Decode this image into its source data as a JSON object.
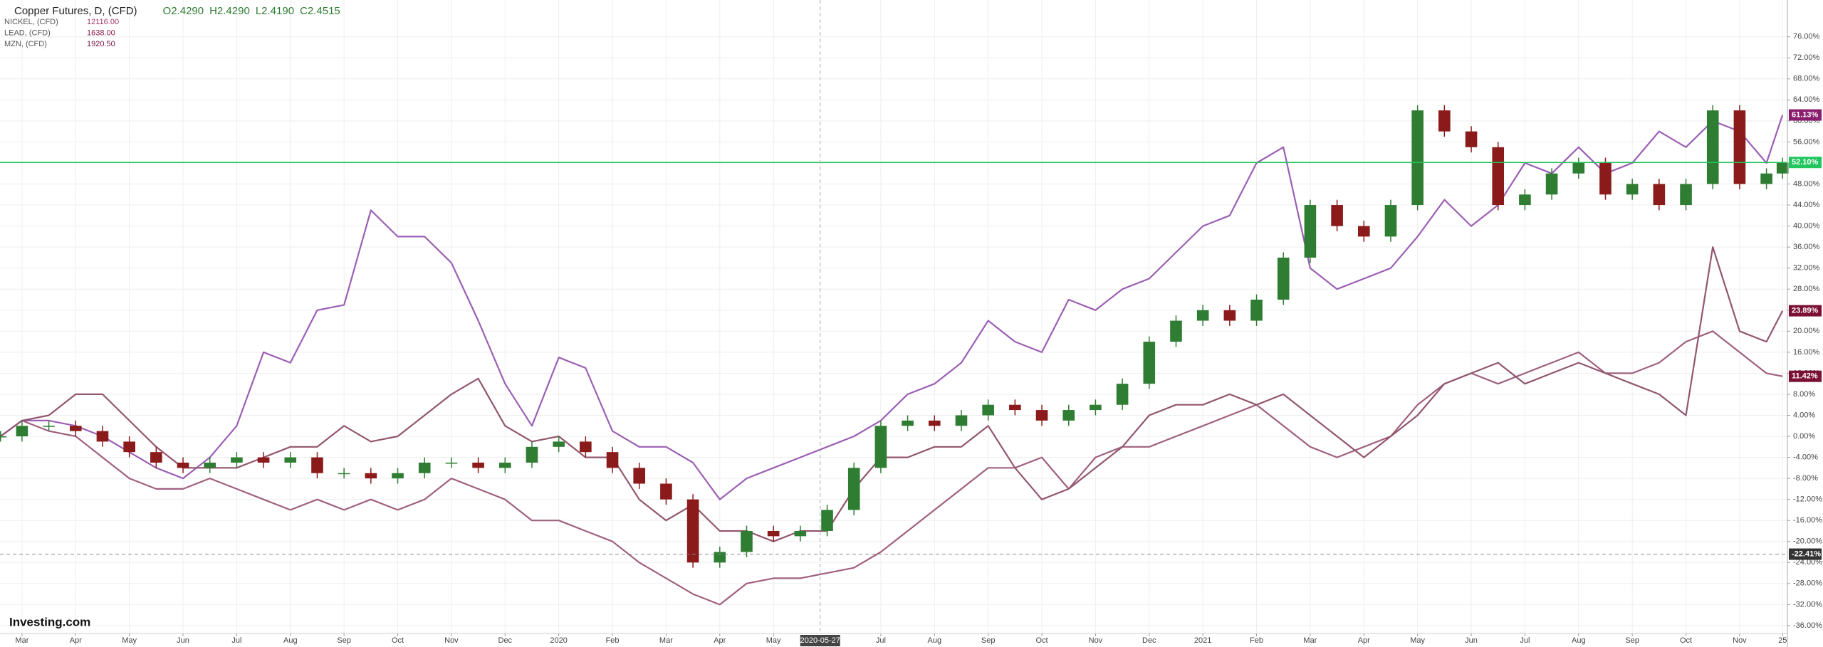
{
  "chart_data": {
    "type": "candlestick",
    "title": "Copper Futures, D, (CFD)",
    "ohlc": [
      "O2.4290",
      "H2.4290",
      "L2.4190",
      "C2.4515"
    ],
    "logo": "Investing.com",
    "x": [
      1.6,
      2,
      2.5,
      3,
      3.5,
      4,
      4.5,
      5,
      5.5,
      6,
      6.5,
      7,
      7.5,
      8,
      8.5,
      9,
      9.5,
      10,
      10.5,
      11,
      11.5,
      12,
      12.5,
      13,
      13.5,
      14,
      14.5,
      15,
      15.5,
      16,
      16.5,
      17,
      17.5,
      18,
      18.5,
      19,
      19.5,
      20,
      20.5,
      21,
      21.5,
      22,
      22.5,
      23,
      23.5,
      24,
      24.5,
      25,
      25.5,
      26,
      26.5,
      27,
      27.5,
      28,
      28.5,
      29,
      29.5,
      30,
      30.5,
      31,
      31.5,
      32,
      32.5,
      33,
      33.5,
      34,
      34.5,
      34.8
    ],
    "xlim": [
      1.59,
      34.89
    ],
    "xticks": [
      {
        "value": 2,
        "label": "Mar"
      },
      {
        "value": 3,
        "label": "Apr"
      },
      {
        "value": 4,
        "label": "May"
      },
      {
        "value": 5,
        "label": "Jun"
      },
      {
        "value": 6,
        "label": "Jul"
      },
      {
        "value": 7,
        "label": "Aug"
      },
      {
        "value": 8,
        "label": "Sep"
      },
      {
        "value": 9,
        "label": "Oct"
      },
      {
        "value": 10,
        "label": "Nov"
      },
      {
        "value": 11,
        "label": "Dec"
      },
      {
        "value": 12,
        "label": "2020"
      },
      {
        "value": 13,
        "label": "Feb"
      },
      {
        "value": 14,
        "label": "Mar"
      },
      {
        "value": 15,
        "label": "Apr"
      },
      {
        "value": 16,
        "label": "May"
      },
      {
        "value": 18,
        "label": "Jul"
      },
      {
        "value": 19,
        "label": "Aug"
      },
      {
        "value": 20,
        "label": "Sep"
      },
      {
        "value": 21,
        "label": "Oct"
      },
      {
        "value": 22,
        "label": "Nov"
      },
      {
        "value": 23,
        "label": "Dec"
      },
      {
        "value": 24,
        "label": "2021"
      },
      {
        "value": 25,
        "label": "Feb"
      },
      {
        "value": 26,
        "label": "Mar"
      },
      {
        "value": 27,
        "label": "Apr"
      },
      {
        "value": 28,
        "label": "May"
      },
      {
        "value": 29,
        "label": "Jun"
      },
      {
        "value": 30,
        "label": "Jul"
      },
      {
        "value": 31,
        "label": "Aug"
      },
      {
        "value": 32,
        "label": "Sep"
      },
      {
        "value": 33,
        "label": "Oct"
      },
      {
        "value": 34,
        "label": "Nov"
      },
      {
        "value": 34.8,
        "label": "25"
      }
    ],
    "ylim": [
      -37.5,
      83
    ],
    "yticks": [
      {
        "value": 76,
        "label": "76.00%"
      },
      {
        "value": 72,
        "label": "72.00%"
      },
      {
        "value": 68,
        "label": "68.00%"
      },
      {
        "value": 64,
        "label": "64.00%"
      },
      {
        "value": 60,
        "label": "60.00%"
      },
      {
        "value": 56,
        "label": "56.00%"
      },
      {
        "value": 52,
        "label": "52.00%"
      },
      {
        "value": 48,
        "label": "48.00%"
      },
      {
        "value": 44,
        "label": "44.00%"
      },
      {
        "value": 40,
        "label": "40.00%"
      },
      {
        "value": 36,
        "label": "36.00%"
      },
      {
        "value": 32,
        "label": "32.00%"
      },
      {
        "value": 28,
        "label": "28.00%"
      },
      {
        "value": 24,
        "label": "24.00%"
      },
      {
        "value": 20,
        "label": "20.00%"
      },
      {
        "value": 16,
        "label": "16.00%"
      },
      {
        "value": 12,
        "label": "12.00%"
      },
      {
        "value": 8,
        "label": "8.00%"
      },
      {
        "value": 4,
        "label": "4.00%"
      },
      {
        "value": 0,
        "label": "0.00%"
      },
      {
        "value": -4,
        "label": "-4.00%"
      },
      {
        "value": -8,
        "label": "-8.00%"
      },
      {
        "value": -12,
        "label": "-12.00%"
      },
      {
        "value": -16,
        "label": "-16.00%"
      },
      {
        "value": -20,
        "label": "-20.00%"
      },
      {
        "value": -24,
        "label": "-24.00%"
      },
      {
        "value": -28,
        "label": "-28.00%"
      },
      {
        "value": -32,
        "label": "-32.00%"
      },
      {
        "value": -36,
        "label": "-36.00%"
      }
    ],
    "grid": true,
    "candles": {
      "up_color": "#2e7d32",
      "down_color": "#8b1a1a",
      "open": [
        0,
        0,
        2,
        2,
        1,
        -1,
        -3,
        -5,
        -6,
        -5,
        -4,
        -5,
        -4,
        -7,
        -7,
        -8,
        -7,
        -5,
        -5,
        -6,
        -5,
        -2,
        -1,
        -3,
        -6,
        -9,
        -12,
        -24,
        -22,
        -18,
        -19,
        -18,
        -14,
        -6,
        2,
        3,
        2,
        4,
        6,
        5,
        3,
        5,
        6,
        10,
        18,
        22,
        24,
        22,
        26,
        34,
        44,
        40,
        38,
        44,
        62,
        58,
        55,
        44,
        46,
        50,
        52,
        46,
        48,
        44,
        48,
        62,
        48,
        50
      ],
      "high": [
        1,
        3,
        3,
        3,
        2,
        0,
        -2,
        -4,
        -4,
        -3,
        -3,
        -3,
        -3,
        -6,
        -6,
        -6,
        -4,
        -4,
        -4,
        -4,
        -1,
        0,
        0,
        -2,
        -5,
        -8,
        -11,
        -21,
        -17,
        -17,
        -17,
        -13,
        -5,
        3,
        4,
        4,
        5,
        7,
        7,
        6,
        6,
        7,
        11,
        19,
        23,
        25,
        25,
        27,
        35,
        45,
        45,
        41,
        45,
        63,
        63,
        59,
        56,
        47,
        51,
        53,
        53,
        49,
        49,
        49,
        63,
        63,
        51,
        53
      ],
      "low": [
        -1,
        -1,
        1,
        0,
        -2,
        -4,
        -6,
        -7,
        -7,
        -6,
        -6,
        -6,
        -8,
        -8,
        -9,
        -9,
        -8,
        -6,
        -7,
        -7,
        -6,
        -3,
        -4,
        -7,
        -10,
        -13,
        -25,
        -25,
        -23,
        -20,
        -20,
        -19,
        -15,
        -7,
        1,
        1,
        1,
        3,
        4,
        2,
        2,
        4,
        5,
        9,
        17,
        21,
        21,
        21,
        25,
        33,
        39,
        37,
        37,
        43,
        57,
        54,
        43,
        43,
        45,
        49,
        45,
        45,
        43,
        43,
        47,
        47,
        47,
        49
      ],
      "close": [
        0,
        2,
        2,
        1,
        -1,
        -3,
        -5,
        -6,
        -5,
        -4,
        -5,
        -4,
        -7,
        -7,
        -8,
        -7,
        -5,
        -5,
        -6,
        -5,
        -2,
        -1,
        -3,
        -6,
        -9,
        -12,
        -24,
        -22,
        -18,
        -19,
        -18,
        -14,
        -6,
        2,
        3,
        2,
        4,
        6,
        5,
        3,
        5,
        6,
        10,
        18,
        22,
        24,
        22,
        26,
        34,
        44,
        40,
        38,
        44,
        62,
        58,
        55,
        44,
        46,
        50,
        52,
        46,
        48,
        44,
        48,
        62,
        48,
        50,
        52
      ]
    },
    "series": [
      {
        "name": "NICKEL, (CFD)",
        "color": "#9b5fb4",
        "legend_color": "#a0306a",
        "legend_value": {
          "value": 12116,
          "label": "12116.00"
        },
        "values": [
          0,
          3,
          3,
          2,
          0,
          -3,
          -6,
          -8,
          -4,
          2,
          16,
          14,
          24,
          25,
          43,
          38,
          38,
          33,
          22,
          10,
          2,
          15,
          13,
          1,
          -2,
          -2,
          -5,
          -12,
          -8,
          -6,
          -4,
          -2,
          0,
          3,
          8,
          10,
          14,
          22,
          18,
          16,
          26,
          24,
          28,
          30,
          35,
          40,
          42,
          52,
          55,
          32,
          28,
          30,
          32,
          38,
          45,
          40,
          44,
          52,
          50,
          55,
          50,
          52,
          58,
          55,
          60,
          58,
          52,
          61.13
        ]
      },
      {
        "name": "LEAD, (CFD)",
        "color": "#a0607e",
        "legend_color": "#8b1a4a",
        "legend_value": {
          "value": 1638,
          "label": "1638.00"
        },
        "values": [
          0,
          3,
          1,
          0,
          -4,
          -8,
          -10,
          -10,
          -8,
          -10,
          -12,
          -14,
          -12,
          -14,
          -12,
          -14,
          -12,
          -8,
          -10,
          -12,
          -16,
          -16,
          -18,
          -20,
          -24,
          -27,
          -30,
          -32,
          -28,
          -27,
          -27,
          -26,
          -25,
          -22,
          -18,
          -14,
          -10,
          -6,
          -6,
          -4,
          -10,
          -4,
          -2,
          -2,
          0,
          2,
          4,
          6,
          2,
          -2,
          -4,
          -2,
          0,
          6,
          10,
          12,
          10,
          12,
          14,
          16,
          12,
          12,
          14,
          18,
          20,
          16,
          12,
          11.42
        ]
      },
      {
        "name": "MZN, (CFD)",
        "color": "#92566f",
        "legend_color": "#7a1040",
        "legend_value": {
          "value": 1920.5,
          "label": "1920.50"
        },
        "values": [
          0,
          3,
          4,
          8,
          8,
          3,
          -2,
          -6,
          -6,
          -6,
          -4,
          -2,
          -2,
          2,
          -1,
          0,
          4,
          8,
          11,
          2,
          -1,
          0,
          -4,
          -4,
          -12,
          -16,
          -13,
          -18,
          -18,
          -20,
          -18,
          -18,
          -10,
          -4,
          -4,
          -2,
          -2,
          2,
          -6,
          -12,
          -10,
          -6,
          -2,
          4,
          6,
          6,
          8,
          6,
          8,
          4,
          0,
          -4,
          0,
          4,
          10,
          12,
          14,
          10,
          12,
          14,
          12,
          10,
          8,
          4,
          36,
          20,
          18,
          23.89
        ]
      }
    ],
    "tags": [
      {
        "value": 61.13,
        "label": "61.13%",
        "color": "#8a1d6e"
      },
      {
        "value": 52.1,
        "label": "52.10%",
        "color": "#22c55e",
        "line": "solid"
      },
      {
        "value": 23.89,
        "label": "23.89%",
        "color": "#7b1035"
      },
      {
        "value": 11.42,
        "label": "11.42%",
        "color": "#7b1035"
      },
      {
        "value": -22.41,
        "label": "-22.41%",
        "color": "#333333",
        "line": "dashed"
      }
    ],
    "crosshair_x": {
      "value": 16.87,
      "label": "2020-05-27"
    }
  }
}
